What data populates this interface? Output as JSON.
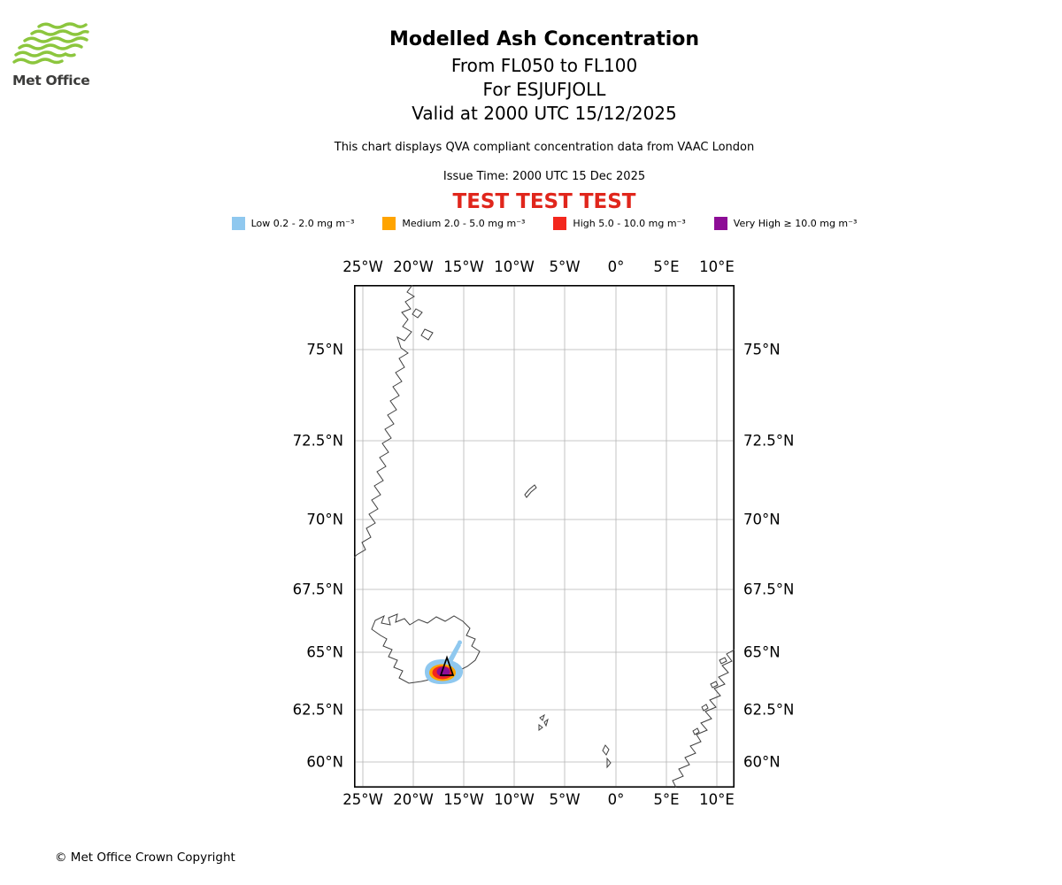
{
  "logo": {
    "text": "Met Office"
  },
  "header": {
    "title": "Modelled Ash Concentration",
    "flight_levels": "From FL050 to FL100",
    "volcano": "For ESJUFJOLL",
    "valid_time": "Valid at 2000 UTC 15/12/2025",
    "description": "This chart displays QVA compliant concentration data from VAAC London",
    "issue_time": "Issue Time: 2000 UTC 15 Dec 2025",
    "test_banner": "TEST TEST TEST"
  },
  "legend": {
    "items": [
      {
        "label": "Low 0.2 - 2.0 mg m⁻³",
        "color": "#8fc8ef"
      },
      {
        "label": "Medium 2.0 - 5.0 mg m⁻³",
        "color": "#ffa400"
      },
      {
        "label": "High 5.0 - 10.0 mg m⁻³",
        "color": "#f3271d"
      },
      {
        "label": "Very High ≥ 10.0 mg m⁻³",
        "color": "#8d0d96"
      }
    ]
  },
  "map": {
    "lon_labels": [
      "25°W",
      "20°W",
      "15°W",
      "10°W",
      "5°W",
      "0°",
      "5°E",
      "10°E"
    ],
    "lat_labels": [
      "75°N",
      "72.5°N",
      "70°N",
      "67.5°N",
      "65°N",
      "62.5°N",
      "60°N"
    ]
  },
  "footer": {
    "copyright": "© Met Office Crown Copyright"
  },
  "colors": {
    "low": "#8fc8ef",
    "medium": "#ffa400",
    "high": "#f3271d",
    "very_high": "#8d0d96",
    "test_red": "#e0261c",
    "logo_green": "#8cc63e",
    "coast": "#3f3f3f",
    "grid": "#b4b4b4"
  }
}
